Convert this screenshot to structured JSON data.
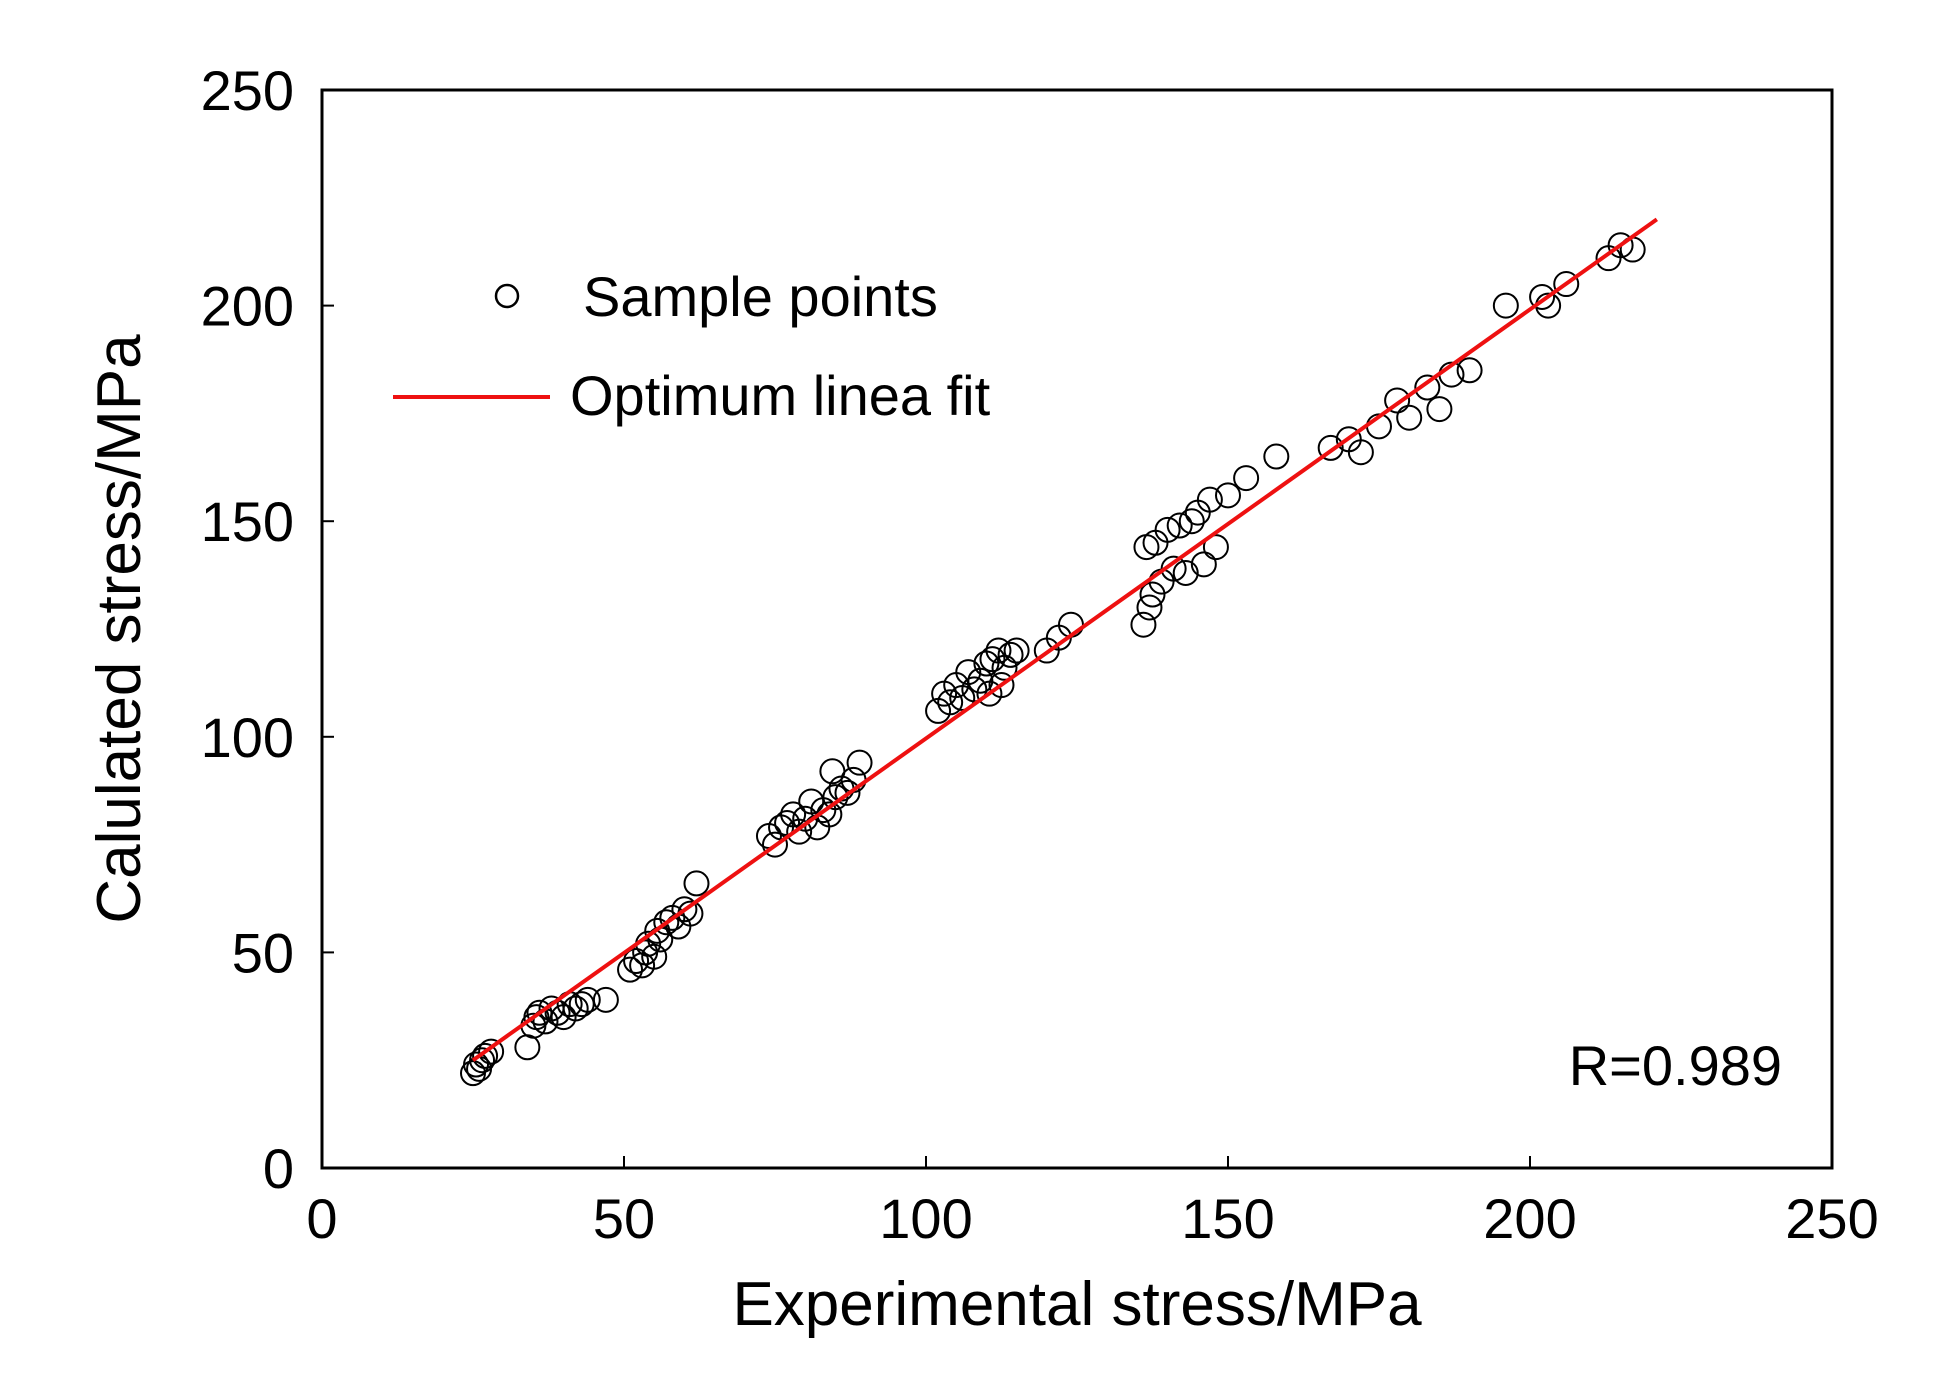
{
  "chart_data": {
    "type": "scatter",
    "xlabel": "Experimental stress/MPa",
    "ylabel": "Calulated stress/MPa",
    "xlim": [
      0,
      250
    ],
    "ylim": [
      0,
      250
    ],
    "xticks": [
      0,
      50,
      100,
      150,
      200,
      250
    ],
    "yticks": [
      0,
      50,
      100,
      150,
      200,
      250
    ],
    "xtick_labels": [
      "0",
      "50",
      "100",
      "150",
      "200",
      "250"
    ],
    "ytick_labels": [
      "0",
      "50",
      "100",
      "150",
      "200",
      "250"
    ],
    "grid": false,
    "legend_position": "top-left",
    "annotation": "R=0.989",
    "colors": {
      "fit_line": "#ee1111",
      "markers": "#000000",
      "axes": "#000000"
    },
    "series": [
      {
        "name": "Sample points",
        "marker": "open-circle",
        "x": [
          25,
          25.5,
          26,
          26.5,
          27,
          28,
          34,
          35,
          35.5,
          36,
          37,
          38,
          39,
          40,
          41,
          42,
          43,
          44,
          47,
          51,
          52,
          53,
          53.5,
          54,
          55,
          55.5,
          56,
          57,
          58,
          59,
          60,
          61,
          62,
          74,
          75,
          76,
          77,
          78,
          79,
          80,
          81,
          82,
          83,
          84,
          84.5,
          85,
          86,
          87,
          88,
          89,
          102,
          103,
          104,
          105,
          106,
          107,
          108,
          109,
          110,
          110.5,
          111,
          112,
          112.5,
          113,
          114,
          115,
          120,
          122,
          124,
          136,
          136.5,
          137,
          137.5,
          138,
          139,
          140,
          141,
          142,
          143,
          144,
          145,
          146,
          147,
          148,
          150,
          153,
          158,
          167,
          170,
          172,
          175,
          178,
          180,
          183,
          185,
          187,
          190,
          196,
          202,
          203,
          206,
          213,
          215,
          217
        ],
        "y": [
          22,
          24,
          23,
          25,
          26,
          27,
          28,
          33,
          35,
          36,
          34,
          37,
          36,
          35,
          38,
          37,
          38,
          39,
          39,
          46,
          48,
          47,
          50,
          52,
          49,
          55,
          53,
          57,
          58,
          56,
          60,
          59,
          66,
          77,
          75,
          79,
          80,
          82,
          78,
          81,
          85,
          79,
          83,
          82,
          92,
          86,
          88,
          87,
          90,
          94,
          106,
          110,
          108,
          112,
          109,
          115,
          111,
          113,
          117,
          110,
          118,
          120,
          112,
          116,
          119,
          120,
          120,
          123,
          126,
          126,
          144,
          130,
          133,
          145,
          136,
          148,
          139,
          149,
          138,
          150,
          152,
          140,
          155,
          144,
          156,
          160,
          165,
          167,
          169,
          166,
          172,
          178,
          174,
          181,
          176,
          184,
          185,
          200,
          202,
          200,
          205,
          211,
          214,
          213
        ]
      },
      {
        "name": "Optimum linea fit",
        "type": "line",
        "x": [
          25,
          221
        ],
        "y": [
          25,
          220
        ]
      }
    ]
  }
}
